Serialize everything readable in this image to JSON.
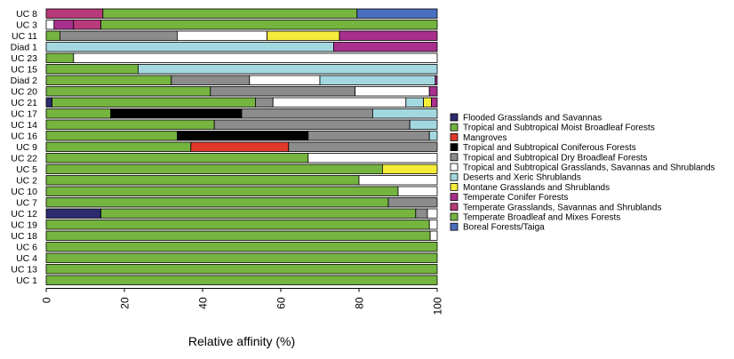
{
  "chart_data": {
    "type": "bar",
    "orientation": "horizontal",
    "stacked": true,
    "xlabel": "Relative affinity (%)",
    "xlim": [
      0,
      100
    ],
    "xticks": [
      "0",
      "20",
      "40",
      "60",
      "80",
      "100"
    ],
    "legend_position": "right",
    "colors": [
      "#2b2b6e",
      "#74b43f",
      "#e0382b",
      "#000000",
      "#8c8c8c",
      "#ffffff",
      "#a4d8e0",
      "#f5ec3a",
      "#a8308c",
      "#b83a7a",
      "#74b43f",
      "#4a6fbf"
    ],
    "legend": [
      "Flooded Grasslands and Savannas",
      "Tropical and Subtropical Moist Broadleaf Forests",
      "Mangroves",
      "Tropical and Subtropical Coniferous Forests",
      "Tropical and Subtropical Dry Broadleaf Forests",
      "Tropical and Subtropical Grasslands, Savannas and Shrublands",
      "Deserts and Xeric Shrublands",
      "Montane Grasslands and Shrublands",
      "Temperate Conifer Forests",
      "Temperate Grasslands, Savannas and Shrublands",
      "Temperate Broadleaf and Mixes Forests",
      "Boreal Forests/Taiga"
    ],
    "categories": [
      "UC 8",
      "UC 3",
      "UC 11",
      "Diad 1",
      "UC 23",
      "UC 15",
      "Diad 2",
      "UC 20",
      "UC 21",
      "UC 17",
      "UC 14",
      "UC 16",
      "UC 9",
      "UC 22",
      "UC 5",
      "UC 2",
      "UC 10",
      "UC 7",
      "UC 12",
      "UC 19",
      "UC 18",
      "UC 6",
      "UC 4",
      "UC 13",
      "UC 1"
    ],
    "values": [
      [
        0,
        0,
        0,
        0,
        0,
        0,
        0,
        0,
        0,
        14.5,
        65,
        20.5
      ],
      [
        0,
        0,
        0,
        0,
        0,
        2,
        0,
        0,
        5,
        7,
        86,
        0
      ],
      [
        0,
        3.5,
        0,
        0,
        30,
        23,
        0,
        18.5,
        25,
        0,
        0,
        0
      ],
      [
        0,
        0,
        0,
        0,
        0,
        0,
        73.5,
        0,
        26.5,
        0,
        0,
        0
      ],
      [
        0,
        7,
        0,
        0,
        0,
        93,
        0,
        0,
        0,
        0,
        0,
        0
      ],
      [
        0,
        23.5,
        0,
        0,
        0,
        0,
        76.5,
        0,
        0,
        0,
        0,
        0
      ],
      [
        0,
        32,
        0,
        0,
        20,
        18,
        29.5,
        0,
        0.5,
        0,
        0,
        0
      ],
      [
        0,
        42,
        0,
        0,
        37,
        19,
        0,
        0,
        2,
        0,
        0,
        0
      ],
      [
        1.5,
        52,
        0,
        0,
        4.5,
        34,
        4.5,
        2,
        1.5,
        0,
        0,
        0
      ],
      [
        0,
        16.5,
        0,
        33.5,
        33.5,
        0,
        16.5,
        0,
        0,
        0,
        0,
        0
      ],
      [
        0,
        43,
        0,
        0,
        50,
        0,
        7,
        0,
        0,
        0,
        0,
        0
      ],
      [
        0,
        33.5,
        0,
        33.5,
        31,
        0,
        2,
        0,
        0,
        0,
        0,
        0
      ],
      [
        0,
        37,
        25,
        0,
        38,
        0,
        0,
        0,
        0,
        0,
        0,
        0
      ],
      [
        0,
        67,
        0,
        0,
        0,
        33,
        0,
        0,
        0,
        0,
        0,
        0
      ],
      [
        0,
        86,
        0,
        0,
        0,
        0,
        0,
        14,
        0,
        0,
        0,
        0
      ],
      [
        0,
        80,
        0,
        0,
        0,
        20,
        0,
        0,
        0,
        0,
        0,
        0
      ],
      [
        0,
        90,
        0,
        0,
        0,
        10,
        0,
        0,
        0,
        0,
        0,
        0
      ],
      [
        0,
        87.5,
        0,
        0,
        12.5,
        0,
        0,
        0,
        0,
        0,
        0,
        0
      ],
      [
        14,
        80.5,
        0,
        0,
        3,
        2.5,
        0,
        0,
        0,
        0,
        0,
        0
      ],
      [
        0,
        98,
        0,
        0,
        0,
        2,
        0,
        0,
        0,
        0,
        0,
        0
      ],
      [
        0,
        98.2,
        0,
        0,
        0,
        1.8,
        0,
        0,
        0,
        0,
        0,
        0
      ],
      [
        0,
        100,
        0,
        0,
        0,
        0,
        0,
        0,
        0,
        0,
        0,
        0
      ],
      [
        0,
        100,
        0,
        0,
        0,
        0,
        0,
        0,
        0,
        0,
        0,
        0
      ],
      [
        0,
        100,
        0,
        0,
        0,
        0,
        0,
        0,
        0,
        0,
        0,
        0
      ],
      [
        0,
        100,
        0,
        0,
        0,
        0,
        0,
        0,
        0,
        0,
        0,
        0
      ]
    ]
  }
}
